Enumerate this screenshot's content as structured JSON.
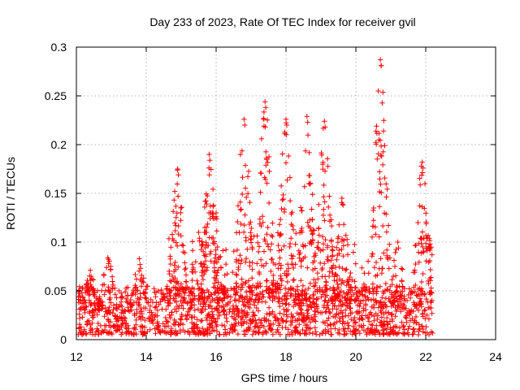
{
  "chart_data": {
    "type": "scatter",
    "title": "Day 233 of 2023, Rate Of TEC Index for receiver gvil",
    "xlabel": "GPS time / hours",
    "ylabel": "ROTI / TECUs",
    "xlim": [
      12,
      24
    ],
    "ylim": [
      0,
      0.3
    ],
    "x_ticks": [
      12,
      14,
      16,
      18,
      20,
      22,
      24
    ],
    "x_tick_labels": [
      "12",
      "14",
      "16",
      "18",
      "20",
      "22",
      "24"
    ],
    "y_ticks": [
      0,
      0.05,
      0.1,
      0.15,
      0.2,
      0.25,
      0.3
    ],
    "y_tick_labels": [
      "0",
      "0.05",
      "0.1",
      "0.15",
      "0.2",
      "0.25",
      "0.3"
    ],
    "grid": true,
    "marker": "+",
    "color": "#ff0000",
    "series": [
      {
        "name": "ROTI",
        "x_range": [
          12.05,
          22.2
        ],
        "baseline_range": [
          0.0,
          0.05
        ],
        "peaks": [
          {
            "x": 12.4,
            "y": 0.071
          },
          {
            "x": 12.9,
            "y": 0.084
          },
          {
            "x": 13.8,
            "y": 0.083
          },
          {
            "x": 14.9,
            "y": 0.175
          },
          {
            "x": 15.5,
            "y": 0.11
          },
          {
            "x": 15.8,
            "y": 0.19
          },
          {
            "x": 16.0,
            "y": 0.13
          },
          {
            "x": 16.8,
            "y": 0.226
          },
          {
            "x": 17.4,
            "y": 0.244
          },
          {
            "x": 18.0,
            "y": 0.226
          },
          {
            "x": 18.6,
            "y": 0.229
          },
          {
            "x": 19.1,
            "y": 0.224
          },
          {
            "x": 19.6,
            "y": 0.145
          },
          {
            "x": 20.7,
            "y": 0.287
          },
          {
            "x": 21.2,
            "y": 0.1
          },
          {
            "x": 21.9,
            "y": 0.182
          },
          {
            "x": 22.1,
            "y": 0.104
          }
        ]
      }
    ]
  }
}
